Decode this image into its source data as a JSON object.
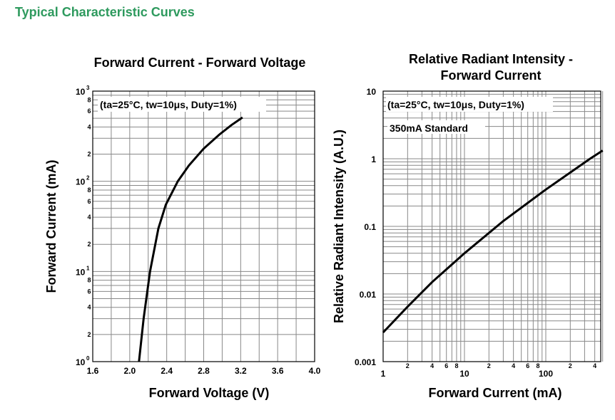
{
  "section_title": "Typical Characteristic Curves",
  "chart_data": [
    {
      "type": "line",
      "title": "Forward Current - Forward Voltage",
      "xlabel": "Forward Voltage (V)",
      "ylabel": "Forward Current (mA)",
      "annotation": "(ta=25°C, tw=10μs, Duty=1%)",
      "xlim": [
        1.6,
        4.0
      ],
      "ylim": [
        1,
        1000
      ],
      "yscale": "log",
      "grid": true,
      "x_ticks": [
        "1.6",
        "2.0",
        "2.4",
        "2.8",
        "3.2",
        "3.6",
        "4.0"
      ],
      "y_major_ticks": [
        {
          "base": "10",
          "exp": "0"
        },
        {
          "base": "10",
          "exp": "1"
        },
        {
          "base": "10",
          "exp": "2"
        },
        {
          "base": "10",
          "exp": "3"
        }
      ],
      "y_minor_ticks": [
        "2",
        "4",
        "6",
        "8"
      ],
      "series": [
        {
          "x": [
            2.1,
            2.15,
            2.22,
            2.31,
            2.39,
            2.52,
            2.64,
            2.8,
            2.97,
            3.1,
            3.22
          ],
          "y": [
            1,
            3,
            10,
            30,
            55,
            100,
            150,
            230,
            330,
            420,
            510
          ]
        }
      ]
    },
    {
      "type": "line",
      "title": "Relative Radiant Intensity - Forward Current",
      "title_lines": [
        "Relative Radiant Intensity -",
        "Forward Current"
      ],
      "xlabel": "Forward Current (mA)",
      "ylabel": "Relative Radiant Intensity (A.U.)",
      "annotation": "(ta=25°C, tw=10μs, Duty=1%)",
      "annotation2": "350mA Standard",
      "xlim": [
        1,
        500
      ],
      "ylim": [
        0.001,
        10
      ],
      "xscale": "log",
      "yscale": "log",
      "grid": true,
      "x_major_ticks": [
        "1",
        "10",
        "100"
      ],
      "x_minor_ticks": [
        "2",
        "4",
        "6",
        "8"
      ],
      "y_ticks": [
        "0.001",
        "0.01",
        "0.1",
        "1",
        "10"
      ],
      "series": [
        {
          "x": [
            1,
            2,
            4,
            10,
            30,
            100,
            350,
            500
          ],
          "y": [
            0.0027,
            0.0065,
            0.015,
            0.04,
            0.12,
            0.35,
            1.0,
            1.32
          ]
        }
      ]
    }
  ]
}
